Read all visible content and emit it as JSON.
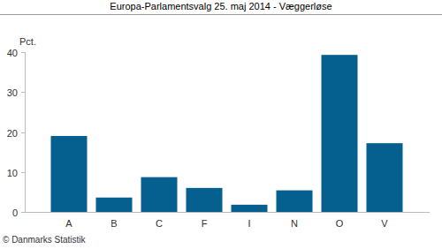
{
  "chart_data": {
    "type": "bar",
    "title": "Europa-Parlamentsvalg 25. maj 2014 - Væggerløse",
    "y_label": "Pct.",
    "source": "© Danmarks Statistik",
    "categories": [
      "A",
      "B",
      "C",
      "F",
      "I",
      "N",
      "O",
      "V"
    ],
    "values": [
      19,
      3.6,
      8.7,
      6,
      1.8,
      5.4,
      39.3,
      17.2
    ],
    "color": "#05608f",
    "ylim": [
      0,
      40
    ],
    "yticks": [
      0,
      10,
      20,
      30,
      40
    ],
    "grid": false
  }
}
